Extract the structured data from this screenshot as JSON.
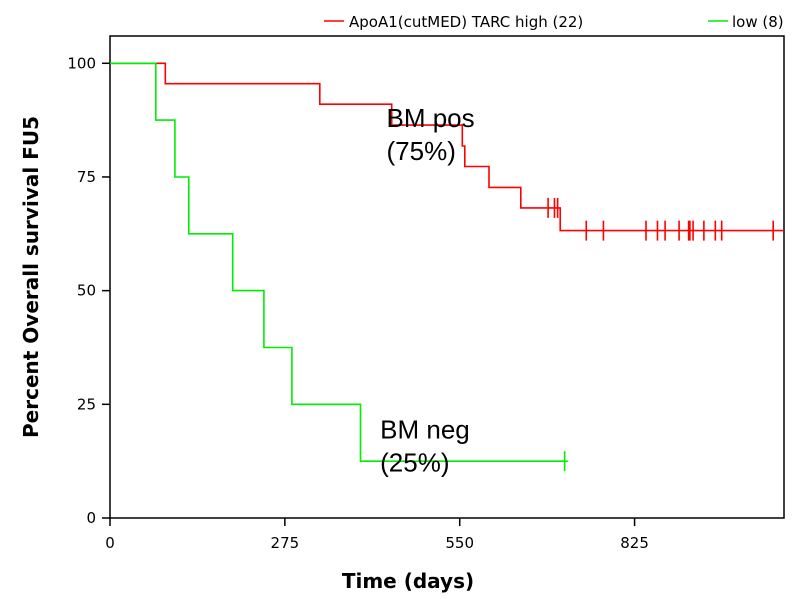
{
  "chart_data": {
    "type": "line",
    "subtype": "kaplan-meier",
    "xlabel": "Time (days)",
    "ylabel": "Percent Overall survival FU5",
    "xlim": [
      0,
      1060
    ],
    "ylim": [
      0,
      106
    ],
    "x_ticks": [
      "0",
      "275",
      "550",
      "825"
    ],
    "y_ticks": [
      "0",
      "25",
      "50",
      "75",
      "100"
    ],
    "legend": {
      "position": "top-right",
      "prefix": "ApoA1(cutMED) TARC",
      "entries": [
        "high (22)",
        "low (8)"
      ]
    },
    "series": [
      {
        "name": "high (22)",
        "color": "#ff0000",
        "steps": [
          [
            0,
            100
          ],
          [
            87,
            100
          ],
          [
            87,
            95.5
          ],
          [
            330,
            95.5
          ],
          [
            330,
            91
          ],
          [
            443,
            91
          ],
          [
            443,
            86.4
          ],
          [
            554,
            86.4
          ],
          [
            554,
            81.8
          ],
          [
            558,
            81.8
          ],
          [
            558,
            77.3
          ],
          [
            596,
            77.3
          ],
          [
            596,
            72.7
          ],
          [
            646,
            72.7
          ],
          [
            646,
            68.2
          ],
          [
            708,
            68.2
          ],
          [
            708,
            63.2
          ],
          [
            1060,
            63.2
          ]
        ],
        "censored": [
          [
            689,
            68.2
          ],
          [
            699,
            68.2
          ],
          [
            704,
            68.2
          ],
          [
            749,
            63.2
          ],
          [
            776,
            63.2
          ],
          [
            843,
            63.2
          ],
          [
            861,
            63.2
          ],
          [
            873,
            63.2
          ],
          [
            895,
            63.2
          ],
          [
            910,
            63.2
          ],
          [
            912,
            63.2
          ],
          [
            917,
            63.2
          ],
          [
            934,
            63.2
          ],
          [
            952,
            63.2
          ],
          [
            962,
            63.2
          ],
          [
            1043,
            63.2
          ]
        ]
      },
      {
        "name": "low (8)",
        "color": "#00ee00",
        "steps": [
          [
            0,
            100
          ],
          [
            72,
            100
          ],
          [
            72,
            87.5
          ],
          [
            102,
            87.5
          ],
          [
            102,
            75
          ],
          [
            124,
            75
          ],
          [
            124,
            62.5
          ],
          [
            193,
            62.5
          ],
          [
            193,
            50
          ],
          [
            242,
            50
          ],
          [
            242,
            37.5
          ],
          [
            286,
            37.5
          ],
          [
            286,
            25
          ],
          [
            394,
            25
          ],
          [
            394,
            12.5
          ],
          [
            720,
            12.5
          ]
        ],
        "censored": [
          [
            715,
            12.5
          ]
        ]
      }
    ],
    "annotations": [
      {
        "lines": [
          "BM pos",
          "(75%)"
        ],
        "x": 600,
        "y": 86
      },
      {
        "lines": [
          "BM neg",
          "(25%)"
        ],
        "x": 590,
        "y": 17.5
      }
    ]
  }
}
